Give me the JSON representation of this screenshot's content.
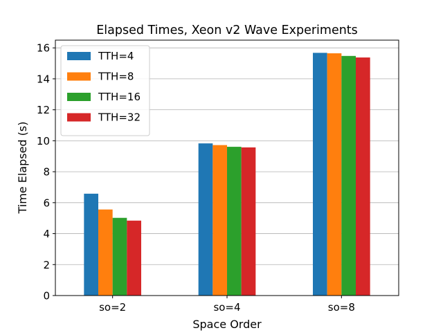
{
  "chart_data": {
    "type": "bar",
    "title": "Elapsed Times, Xeon v2 Wave Experiments",
    "xlabel": "Space Order",
    "ylabel": "Time Elapsed (s)",
    "categories": [
      "so=2",
      "so=4",
      "so=8"
    ],
    "ylim": [
      0,
      16.5
    ],
    "yticks": [
      0,
      2,
      4,
      6,
      8,
      10,
      12,
      14,
      16
    ],
    "grid": "y-axis only",
    "legend_position": "upper-left",
    "series": [
      {
        "name": "TTH=4",
        "color": "#1f77b4",
        "values": [
          6.58,
          9.83,
          15.68
        ]
      },
      {
        "name": "TTH=8",
        "color": "#ff7f0e",
        "values": [
          5.56,
          9.72,
          15.65
        ]
      },
      {
        "name": "TTH=16",
        "color": "#2ca02c",
        "values": [
          5.02,
          9.61,
          15.48
        ]
      },
      {
        "name": "TTH=32",
        "color": "#d62728",
        "values": [
          4.84,
          9.57,
          15.38
        ]
      }
    ]
  }
}
